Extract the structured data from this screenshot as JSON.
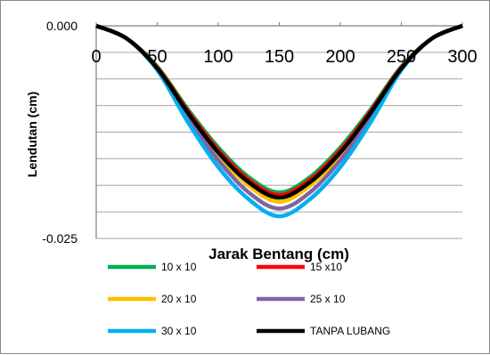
{
  "chart_data": {
    "type": "line",
    "title": "",
    "xlabel": "Jarak Bentang (cm)",
    "ylabel": "Lendutan (cm)",
    "xlim": [
      0,
      300
    ],
    "ylim": [
      -0.025,
      0.0
    ],
    "x_ticks": [
      0,
      50,
      100,
      150,
      200,
      250,
      300
    ],
    "x_tick_labels": [
      "0",
      "50",
      "100",
      "150",
      "200",
      "250",
      "300"
    ],
    "y_ticks": [
      0.0,
      -0.025
    ],
    "y_tick_labels": [
      "0.000",
      "-0.025"
    ],
    "grid": "horizontal",
    "legend_position": "bottom",
    "x": [
      0,
      25,
      50,
      75,
      100,
      125,
      150,
      175,
      200,
      225,
      250,
      275,
      300
    ],
    "series": [
      {
        "name": "10 x 10",
        "color": "#00b050",
        "values": [
          0.0,
          -0.0015,
          -0.0048,
          -0.0098,
          -0.0143,
          -0.0178,
          -0.0196,
          -0.0178,
          -0.0143,
          -0.0098,
          -0.0048,
          -0.0015,
          0.0
        ]
      },
      {
        "name": "15 x10",
        "color": "#ff0000",
        "values": [
          0.0,
          -0.0015,
          -0.0049,
          -0.01,
          -0.0146,
          -0.0181,
          -0.0199,
          -0.0181,
          -0.0146,
          -0.01,
          -0.0049,
          -0.0015,
          0.0
        ]
      },
      {
        "name": "20 x 10",
        "color": "#ffc000",
        "values": [
          0.0,
          -0.0015,
          -0.005,
          -0.0104,
          -0.0152,
          -0.0188,
          -0.0207,
          -0.0188,
          -0.0152,
          -0.0104,
          -0.005,
          -0.0015,
          0.0
        ]
      },
      {
        "name": "25 x 10",
        "color": "#8064a2",
        "values": [
          0.0,
          -0.0015,
          -0.0051,
          -0.0108,
          -0.0158,
          -0.0196,
          -0.0215,
          -0.0196,
          -0.0158,
          -0.0108,
          -0.0051,
          -0.0015,
          0.0
        ]
      },
      {
        "name": "30 x 10",
        "color": "#00b0f0",
        "values": [
          0.0,
          -0.0015,
          -0.0052,
          -0.0113,
          -0.0166,
          -0.0204,
          -0.0224,
          -0.0204,
          -0.0166,
          -0.0113,
          -0.0052,
          -0.0015,
          0.0
        ]
      },
      {
        "name": "TANPA LUBANG",
        "color": "#000000",
        "values": [
          0.0,
          -0.0015,
          -0.005,
          -0.0102,
          -0.0149,
          -0.0184,
          -0.0202,
          -0.0184,
          -0.0149,
          -0.0102,
          -0.005,
          -0.0015,
          0.0
        ]
      }
    ]
  }
}
